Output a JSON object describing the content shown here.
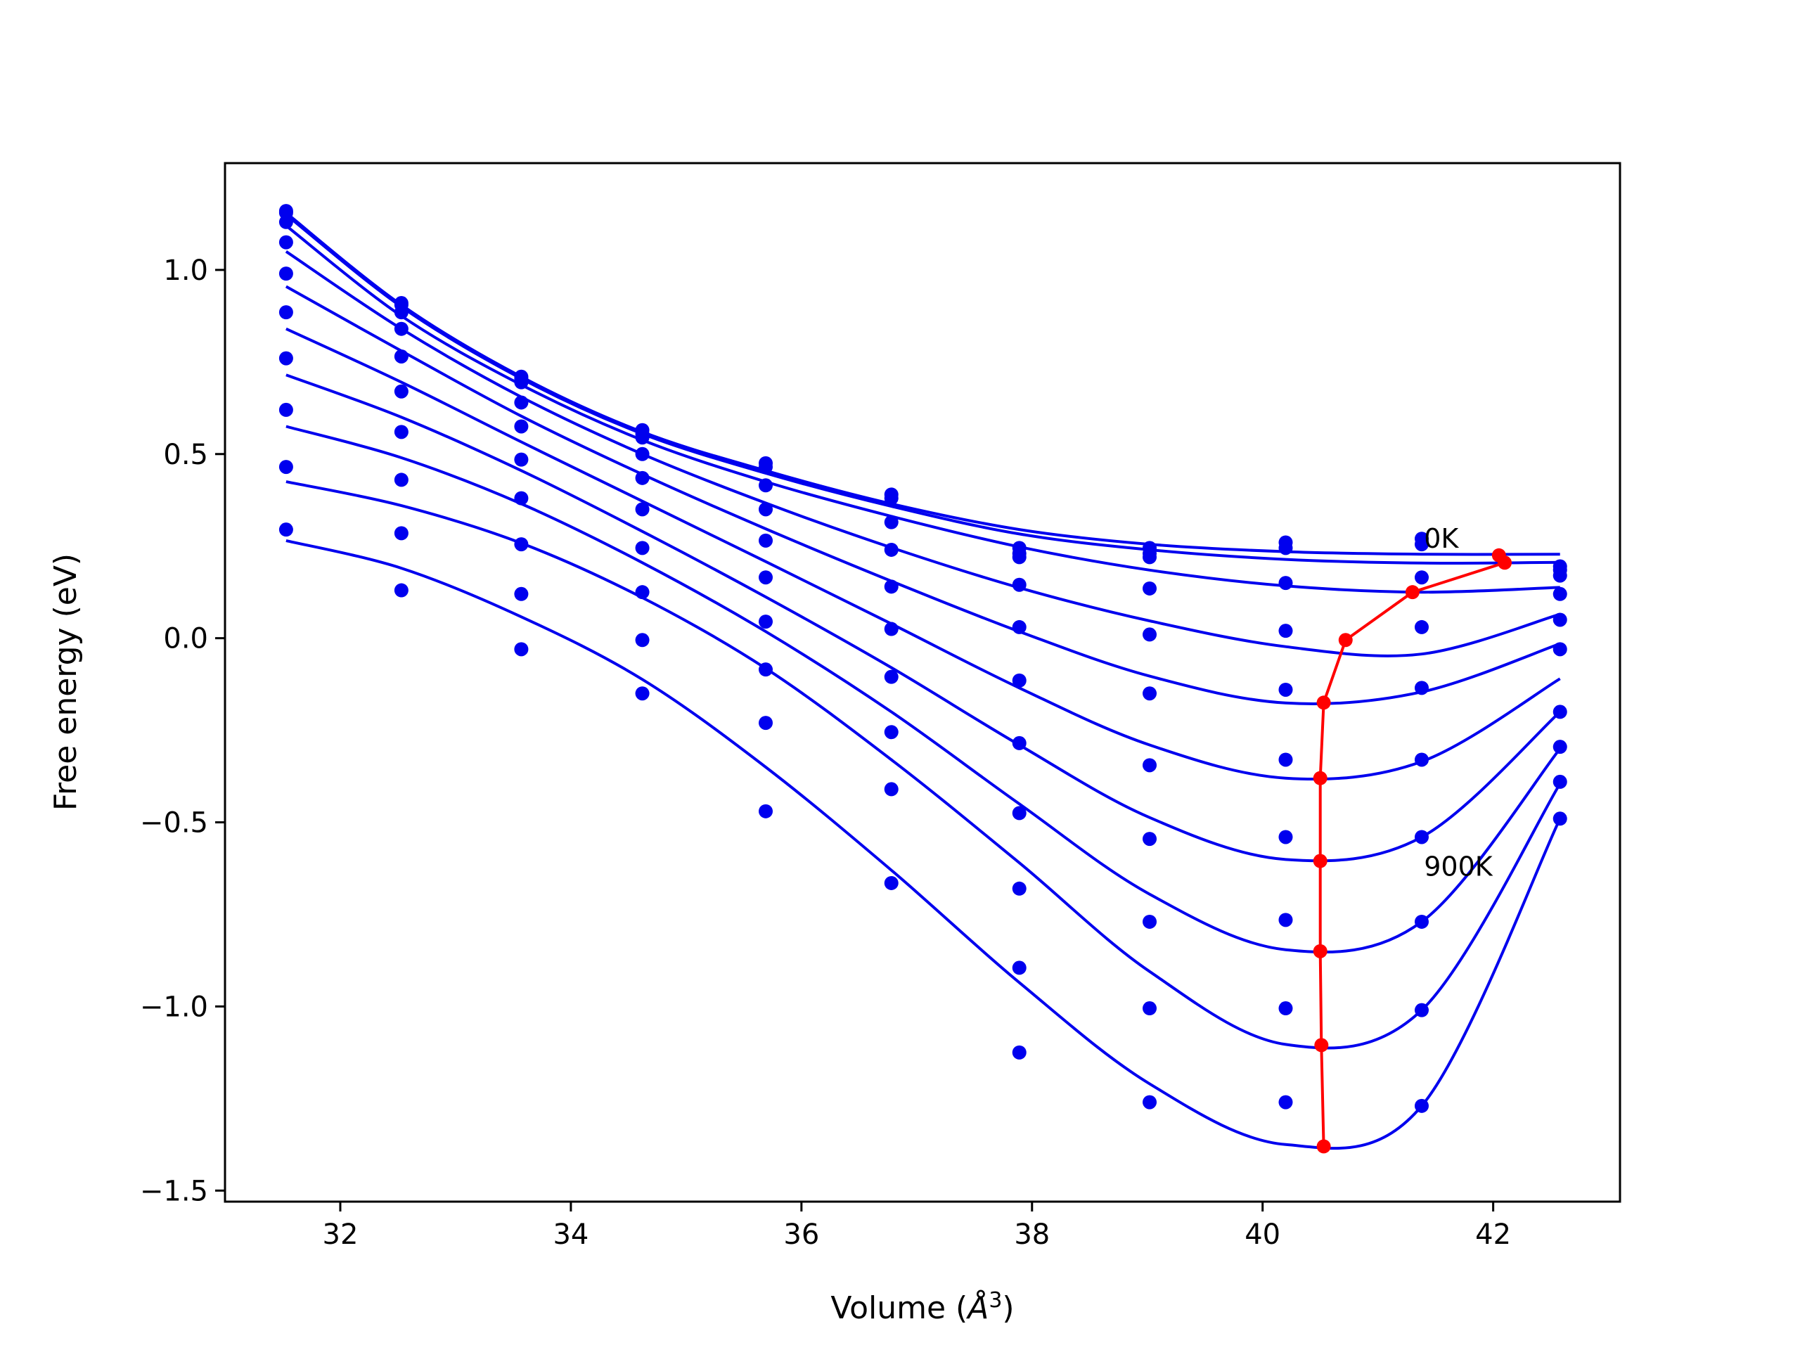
{
  "chart_data": {
    "type": "line",
    "title": "",
    "xlabel": "Volume (Å³)",
    "xlabel_main": "Volume (",
    "xlabel_unit": "Å",
    "xlabel_sup": "3",
    "xlabel_close": ")",
    "ylabel": "Free energy (eV)",
    "xlim": [
      31.0,
      43.1
    ],
    "ylim": [
      -1.53,
      1.29
    ],
    "x_ticks": [
      32,
      34,
      36,
      38,
      40,
      42
    ],
    "x_tick_labels": [
      "32",
      "34",
      "36",
      "38",
      "40",
      "42"
    ],
    "y_ticks": [
      1.0,
      0.5,
      0.0,
      -0.5,
      -1.0,
      -1.5
    ],
    "y_tick_labels": [
      "1.0",
      "0.5",
      "0.0",
      "−0.5",
      "−1.0",
      "−1.5"
    ],
    "grid": false,
    "colors": {
      "curves": "#0000ee",
      "minima": "#ff0000",
      "frame": "#000000"
    },
    "annotations": [
      {
        "text": "0K",
        "x": 41.4,
        "y": 0.27
      },
      {
        "text": "900K",
        "x": 41.4,
        "y": -0.62
      }
    ],
    "volumes": [
      31.53,
      32.53,
      33.57,
      34.62,
      35.69,
      36.78,
      37.89,
      39.02,
      40.2,
      41.38,
      42.58
    ],
    "series": [
      {
        "points": [
          1.16,
          0.91,
          0.71,
          0.565,
          0.475,
          0.39,
          0.245,
          0.245,
          0.26,
          0.27,
          0.195
        ],
        "fit": [
          1.155,
          0.905,
          0.71,
          0.56,
          0.455,
          0.365,
          0.295,
          0.255,
          0.235,
          0.228,
          0.228
        ]
      },
      {
        "points": [
          1.155,
          0.905,
          0.705,
          0.555,
          0.465,
          0.38,
          0.23,
          0.23,
          0.245,
          0.255,
          0.185
        ],
        "fit": [
          1.15,
          0.9,
          0.705,
          0.555,
          0.448,
          0.358,
          0.283,
          0.24,
          0.214,
          0.204,
          0.206
        ]
      },
      {
        "points": [
          1.13,
          0.885,
          0.695,
          0.545,
          0.415,
          0.315,
          0.22,
          0.22,
          0.15,
          0.165,
          0.17
        ],
        "fit": [
          1.12,
          0.875,
          0.688,
          0.538,
          0.425,
          0.331,
          0.248,
          0.185,
          0.142,
          0.125,
          0.138
        ]
      },
      {
        "points": [
          1.075,
          0.84,
          0.64,
          0.5,
          0.35,
          0.24,
          0.145,
          0.135,
          0.02,
          0.03,
          0.12
        ],
        "fit": [
          1.05,
          0.84,
          0.655,
          0.5,
          0.367,
          0.246,
          0.137,
          0.047,
          -0.023,
          -0.043,
          0.065
        ]
      },
      {
        "points": [
          0.99,
          0.765,
          0.575,
          0.435,
          0.265,
          0.14,
          0.03,
          0.01,
          -0.14,
          -0.135,
          0.05
        ],
        "fit": [
          0.955,
          0.78,
          0.603,
          0.445,
          0.297,
          0.155,
          0.018,
          -0.103,
          -0.176,
          -0.146,
          -0.015
        ]
      },
      {
        "points": [
          0.885,
          0.67,
          0.485,
          0.35,
          0.165,
          0.025,
          -0.115,
          -0.15,
          -0.33,
          -0.33,
          -0.03
        ],
        "fit": [
          0.84,
          0.695,
          0.533,
          0.372,
          0.208,
          0.039,
          -0.135,
          -0.29,
          -0.38,
          -0.335,
          -0.11
        ]
      },
      {
        "points": [
          0.76,
          0.56,
          0.38,
          0.245,
          0.045,
          -0.105,
          -0.285,
          -0.345,
          -0.54,
          -0.54,
          -0.2
        ],
        "fit": [
          0.715,
          0.6,
          0.455,
          0.29,
          0.112,
          -0.08,
          -0.29,
          -0.487,
          -0.601,
          -0.54,
          -0.2
        ]
      },
      {
        "points": [
          0.62,
          0.43,
          0.255,
          0.125,
          -0.085,
          -0.255,
          -0.475,
          -0.545,
          -0.765,
          -0.77,
          -0.295
        ],
        "fit": [
          0.575,
          0.49,
          0.365,
          0.205,
          0.018,
          -0.2,
          -0.45,
          -0.695,
          -0.846,
          -0.77,
          -0.3
        ]
      },
      {
        "points": [
          0.465,
          0.285,
          0.12,
          -0.005,
          -0.23,
          -0.41,
          -0.68,
          -0.77,
          -1.005,
          -1.01,
          -0.39
        ],
        "fit": [
          0.425,
          0.36,
          0.258,
          0.11,
          -0.082,
          -0.33,
          -0.61,
          -0.905,
          -1.103,
          -1.01,
          -0.395
        ]
      },
      {
        "points": [
          0.295,
          0.13,
          -0.03,
          -0.15,
          -0.47,
          -0.665,
          -0.895,
          -1.005,
          -1.26,
          -1.27,
          -0.49
        ],
        "fit": [
          0.265,
          0.19,
          0.058,
          -0.112,
          -0.35,
          -0.63,
          -0.935,
          -1.21,
          -1.375,
          -1.27,
          -0.49
        ]
      },
      {
        "points": [
          null,
          null,
          null,
          null,
          null,
          null,
          -1.125,
          -1.26,
          null,
          null,
          null
        ],
        "fit": []
      }
    ],
    "minima": {
      "x": [
        42.05,
        42.1,
        41.3,
        40.72,
        40.53,
        40.5,
        40.5,
        40.5,
        40.51,
        40.53
      ],
      "y": [
        0.225,
        0.205,
        0.125,
        -0.005,
        -0.175,
        -0.38,
        -0.605,
        -0.85,
        -1.105,
        -1.38
      ]
    }
  }
}
